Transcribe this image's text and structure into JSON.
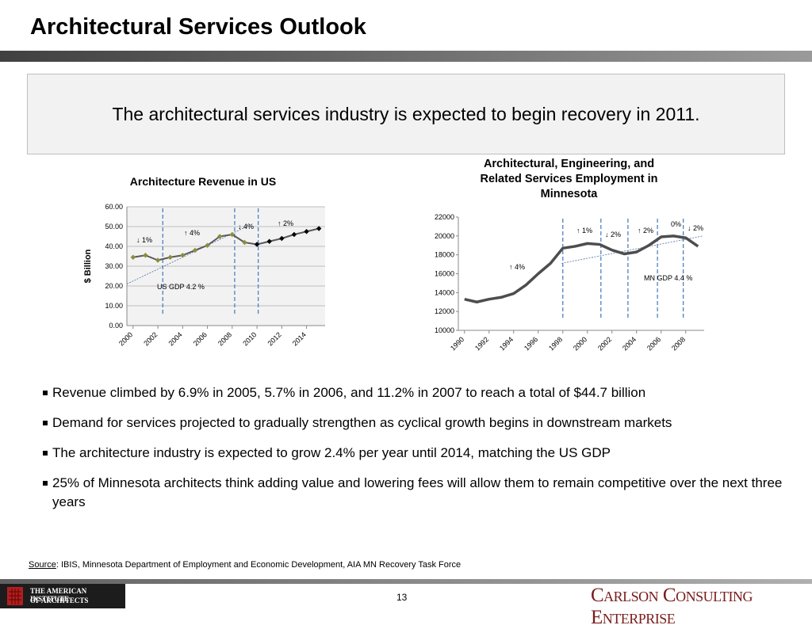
{
  "header": {
    "title": "Architectural Services Outlook"
  },
  "banner": "The architectural services industry is expected to begin recovery in 2011.",
  "chart_data": [
    {
      "type": "line",
      "title": "Architecture Revenue in US",
      "ylabel": "$ Billion",
      "x": [
        2000,
        2001,
        2002,
        2003,
        2004,
        2005,
        2006,
        2007,
        2008,
        2009,
        2010,
        2011,
        2012,
        2013,
        2014,
        2015
      ],
      "series": [
        {
          "color": "#595959",
          "values": [
            34.5,
            35.5,
            33,
            34.5,
            35.5,
            38,
            40.5,
            45,
            46,
            42,
            41,
            42.5,
            44,
            46,
            47.5,
            49
          ],
          "marker_colors": [
            "#8c8c3c",
            "#8c8c3c",
            "#8c8c3c",
            "#8c8c3c",
            "#8c8c3c",
            "#8c8c3c",
            "#8c8c3c",
            "#8c8c3c",
            "#8c8c3c",
            "#8c8c3c",
            "#000000",
            "#000000",
            "#000000",
            "#000000",
            "#000000",
            "#000000"
          ]
        }
      ],
      "xlim": [
        1999.5,
        2015.5
      ],
      "xticks": [
        2000,
        2002,
        2004,
        2006,
        2008,
        2010,
        2012,
        2014
      ],
      "ylim": [
        0,
        60
      ],
      "yticks": [
        {
          "value": 0,
          "label": "0.00"
        },
        {
          "value": 10,
          "label": "10.00"
        },
        {
          "value": 20,
          "label": "20.00"
        },
        {
          "value": 30,
          "label": "30.00"
        },
        {
          "value": 40,
          "label": "40.00"
        },
        {
          "value": 50,
          "label": "50.00"
        },
        {
          "value": 60,
          "label": "60.00"
        }
      ],
      "grid": true,
      "dividers": [
        2002.4,
        2008.2,
        2010.1
      ],
      "trend": {
        "x": [
          1999.5,
          2009.5
        ],
        "values": [
          21,
          51
        ]
      },
      "annotations": [
        "↓ 1%",
        "↑ 4%",
        "↓ 4%",
        "↑ 2%",
        "US GDP  4.2 %"
      ]
    },
    {
      "type": "line",
      "title": "Architectural, Engineering, and Related Services Employment in Minnesota",
      "x": [
        1990,
        1991,
        1992,
        1993,
        1994,
        1995,
        1996,
        1997,
        1998,
        1999,
        2000,
        2001,
        2002,
        2003,
        2004,
        2005,
        2006,
        2007,
        2008,
        2009
      ],
      "series": [
        {
          "color": "#4d4d4d",
          "values": [
            13300,
            13000,
            13300,
            13500,
            13900,
            14800,
            16000,
            17100,
            18700,
            18900,
            19200,
            19100,
            18500,
            18100,
            18300,
            19000,
            19900,
            20000,
            19800,
            18900
          ]
        }
      ],
      "xlim": [
        1989.5,
        2009.5
      ],
      "xticks": [
        1990,
        1992,
        1994,
        1996,
        1998,
        2000,
        2002,
        2004,
        2006,
        2008
      ],
      "ylim": [
        10000,
        22000
      ],
      "yticks": [
        10000,
        12000,
        14000,
        16000,
        18000,
        20000,
        22000
      ],
      "grid": false,
      "dividers": [
        1998,
        2001.1,
        2003.3,
        2005.7,
        2007.8
      ],
      "trend": {
        "x": [
          1997.9,
          2009.4
        ],
        "values": [
          17100,
          20000
        ]
      },
      "annotations": [
        "↑ 4%",
        "↑ 1%",
        "↓ 2%",
        "↑ 2%",
        "0%",
        "↓ 2%",
        "MN GDP  4.4 %"
      ]
    }
  ],
  "bullets": [
    "Revenue climbed by 6.9% in 2005, 5.7% in 2006, and 11.2% in 2007 to reach a total of $44.7 billion",
    "Demand for services projected to gradually strengthen as cyclical growth begins in downstream markets",
    "The architecture industry is expected to grow 2.4% per year until 2014, matching the US GDP",
    "25% of Minnesota architects think adding value and lowering fees will allow them to remain competitive over the next three years"
  ],
  "source": {
    "label": "Source",
    "text": ":  IBIS, Minnesota Department of Employment and Economic Development, AIA MN Recovery Task Force"
  },
  "footer": {
    "aia_line1": "THE AMERICAN INSTITUTE",
    "aia_line2": "OF ARCHITECTS",
    "page": "13",
    "brand": "Carlson Consulting Enterprise"
  }
}
